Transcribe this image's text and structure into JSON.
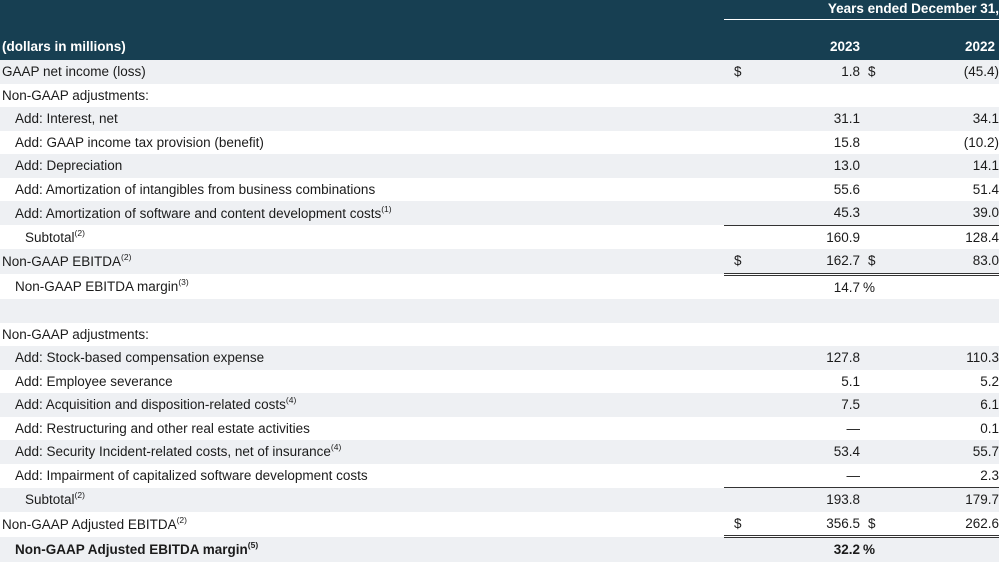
{
  "header": {
    "period": "Years ended December 31,",
    "label": "(dollars in millions)",
    "year1": "2023",
    "year2": "2022"
  },
  "rows": [
    {
      "label": "GAAP net income (loss)",
      "sup": "",
      "indent": 0,
      "cur1": "$",
      "v1": "1.8",
      "pct1": "",
      "cur2": "$",
      "v2": "(45.4)",
      "bold": false
    },
    {
      "label": "Non-GAAP adjustments:",
      "sup": "",
      "indent": 0,
      "cur1": "",
      "v1": "",
      "pct1": "",
      "cur2": "",
      "v2": "",
      "bold": false
    },
    {
      "label": "Add: Interest, net",
      "sup": "",
      "indent": 1,
      "cur1": "",
      "v1": "31.1",
      "pct1": "",
      "cur2": "",
      "v2": "34.1",
      "bold": false
    },
    {
      "label": "Add: GAAP income tax provision (benefit)",
      "sup": "",
      "indent": 1,
      "cur1": "",
      "v1": "15.8",
      "pct1": "",
      "cur2": "",
      "v2": "(10.2)",
      "bold": false
    },
    {
      "label": "Add: Depreciation",
      "sup": "",
      "indent": 1,
      "cur1": "",
      "v1": "13.0",
      "pct1": "",
      "cur2": "",
      "v2": "14.1",
      "bold": false
    },
    {
      "label": "Add: Amortization of intangibles from business combinations",
      "sup": "",
      "indent": 1,
      "cur1": "",
      "v1": "55.6",
      "pct1": "",
      "cur2": "",
      "v2": "51.4",
      "bold": false
    },
    {
      "label": "Add: Amortization of software and content development costs",
      "sup": "(1)",
      "indent": 1,
      "cur1": "",
      "v1": "45.3",
      "pct1": "",
      "cur2": "",
      "v2": "39.0",
      "bold": false
    },
    {
      "label": "Subtotal",
      "sup": "(2)",
      "indent": 2,
      "cur1": "",
      "v1": "160.9",
      "pct1": "",
      "cur2": "",
      "v2": "128.4",
      "bold": false
    },
    {
      "label": "Non-GAAP EBITDA",
      "sup": "(2)",
      "indent": 0,
      "cur1": "$",
      "v1": "162.7",
      "pct1": "",
      "cur2": "$",
      "v2": "83.0",
      "bold": false
    },
    {
      "label": "Non-GAAP EBITDA margin",
      "sup": "(3)",
      "indent": 1,
      "cur1": "",
      "v1": "14.7",
      "pct1": "%",
      "cur2": "",
      "v2": "",
      "bold": false
    },
    {
      "label": "",
      "sup": "",
      "indent": 0,
      "cur1": "",
      "v1": "",
      "pct1": "",
      "cur2": "",
      "v2": "",
      "bold": false
    },
    {
      "label": "Non-GAAP adjustments:",
      "sup": "",
      "indent": 0,
      "cur1": "",
      "v1": "",
      "pct1": "",
      "cur2": "",
      "v2": "",
      "bold": false
    },
    {
      "label": "Add: Stock-based compensation expense",
      "sup": "",
      "indent": 1,
      "cur1": "",
      "v1": "127.8",
      "pct1": "",
      "cur2": "",
      "v2": "110.3",
      "bold": false
    },
    {
      "label": "Add: Employee severance",
      "sup": "",
      "indent": 1,
      "cur1": "",
      "v1": "5.1",
      "pct1": "",
      "cur2": "",
      "v2": "5.2",
      "bold": false
    },
    {
      "label": "Add: Acquisition and disposition-related costs",
      "sup": "(4)",
      "indent": 1,
      "cur1": "",
      "v1": "7.5",
      "pct1": "",
      "cur2": "",
      "v2": "6.1",
      "bold": false
    },
    {
      "label": "Add: Restructuring and other real estate activities",
      "sup": "",
      "indent": 1,
      "cur1": "",
      "v1": "—",
      "pct1": "",
      "cur2": "",
      "v2": "0.1",
      "bold": false
    },
    {
      "label": "Add: Security Incident-related costs, net of insurance",
      "sup": "(4)",
      "indent": 1,
      "cur1": "",
      "v1": "53.4",
      "pct1": "",
      "cur2": "",
      "v2": "55.7",
      "bold": false
    },
    {
      "label": "Add: Impairment of capitalized software development costs",
      "sup": "",
      "indent": 1,
      "cur1": "",
      "v1": "—",
      "pct1": "",
      "cur2": "",
      "v2": "2.3",
      "bold": false
    },
    {
      "label": "Subtotal",
      "sup": "(2)",
      "indent": 2,
      "cur1": "",
      "v1": "193.8",
      "pct1": "",
      "cur2": "",
      "v2": "179.7",
      "bold": false
    },
    {
      "label": "Non-GAAP Adjusted EBITDA",
      "sup": "(2)",
      "indent": 0,
      "cur1": "$",
      "v1": "356.5",
      "pct1": "",
      "cur2": "$",
      "v2": "262.6",
      "bold": false
    },
    {
      "label": "Non-GAAP Adjusted EBITDA margin",
      "sup": "(5)",
      "indent": 1,
      "cur1": "",
      "v1": "32.2",
      "pct1": "%",
      "cur2": "",
      "v2": "",
      "bold": true
    }
  ]
}
